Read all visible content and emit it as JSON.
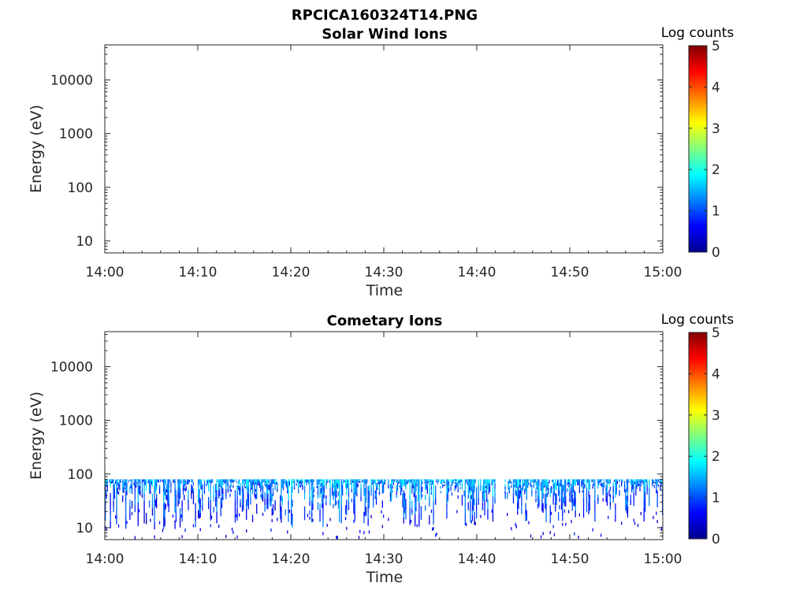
{
  "figure_title": "RPCICA160324T14.PNG",
  "chart_data": [
    {
      "type": "heatmap",
      "title": "Solar Wind Ions",
      "xlabel": "Time",
      "ylabel": "Energy (eV)",
      "x_ticks": [
        "14:00",
        "14:10",
        "14:20",
        "14:30",
        "14:40",
        "14:50",
        "15:00"
      ],
      "xlim": [
        "14:00",
        "15:00"
      ],
      "y_scale": "log",
      "y_ticks": [
        "10",
        "100",
        "1000",
        "10000"
      ],
      "ylim": [
        6,
        45000
      ],
      "colorbar": {
        "label": "Log counts",
        "ticks": [
          "0",
          "1",
          "2",
          "3",
          "4",
          "5"
        ],
        "range": [
          0,
          5
        ],
        "colormap": "jet"
      },
      "data_present": false,
      "bands": []
    },
    {
      "type": "heatmap",
      "title": "Cometary Ions",
      "xlabel": "Time",
      "ylabel": "Energy (eV)",
      "x_ticks": [
        "14:00",
        "14:10",
        "14:20",
        "14:30",
        "14:40",
        "14:50",
        "15:00"
      ],
      "xlim": [
        "14:00",
        "15:00"
      ],
      "y_scale": "log",
      "y_ticks": [
        "10",
        "100",
        "1000",
        "10000"
      ],
      "ylim": [
        6,
        45000
      ],
      "colorbar": {
        "label": "Log counts",
        "ticks": [
          "0",
          "1",
          "2",
          "3",
          "4",
          "5"
        ],
        "range": [
          0,
          5
        ],
        "colormap": "jet"
      },
      "data_present": true,
      "energy_range_eV": [
        7,
        80
      ],
      "typical_log_counts": [
        0.5,
        2.3
      ],
      "gap": [
        "14:42",
        "14:43"
      ],
      "bands": [
        {
          "t0": "14:00",
          "t1": "14:10",
          "emin": 9,
          "emax": 80,
          "level": 1.4
        },
        {
          "t0": "14:10",
          "t1": "14:20",
          "emin": 12,
          "emax": 80,
          "level": 1.5
        },
        {
          "t0": "14:20",
          "t1": "14:30",
          "emin": 10,
          "emax": 80,
          "level": 1.6
        },
        {
          "t0": "14:30",
          "t1": "14:42",
          "emin": 10,
          "emax": 80,
          "level": 1.6
        },
        {
          "t0": "14:43",
          "t1": "14:50",
          "emin": 12,
          "emax": 80,
          "level": 1.6
        },
        {
          "t0": "14:50",
          "t1": "15:00",
          "emin": 12,
          "emax": 80,
          "level": 1.5
        }
      ]
    }
  ]
}
